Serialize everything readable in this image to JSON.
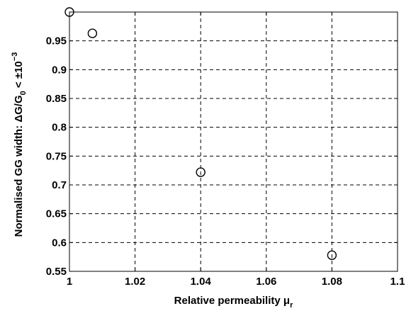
{
  "chart_data": {
    "type": "scatter",
    "xlabel": "Relative permeability μ",
    "xlabel_subscript": "r",
    "ylabel_parts": {
      "prefix": "Normalised GG width:  ΔG/G",
      "sub": "0",
      "mid": " < ±10",
      "sup": "−3"
    },
    "xlim": [
      1.0,
      1.1
    ],
    "ylim": [
      0.55,
      1.0
    ],
    "x_ticks": [
      1.0,
      1.02,
      1.04,
      1.06,
      1.08,
      1.1
    ],
    "x_tick_labels": [
      "1",
      "1.02",
      "1.04",
      "1.06",
      "1.08",
      "1.1"
    ],
    "y_ticks": [
      0.55,
      0.6,
      0.65,
      0.7,
      0.75,
      0.8,
      0.85,
      0.9,
      0.95
    ],
    "y_tick_labels": [
      "0.55",
      "0.6",
      "0.65",
      "0.7",
      "0.75",
      "0.8",
      "0.85",
      "0.9",
      "0.95"
    ],
    "grid": true,
    "marker": "open-circle",
    "points": [
      {
        "x": 1.0,
        "y": 1.0
      },
      {
        "x": 1.007,
        "y": 0.963
      },
      {
        "x": 1.04,
        "y": 0.722
      },
      {
        "x": 1.08,
        "y": 0.578
      }
    ]
  }
}
